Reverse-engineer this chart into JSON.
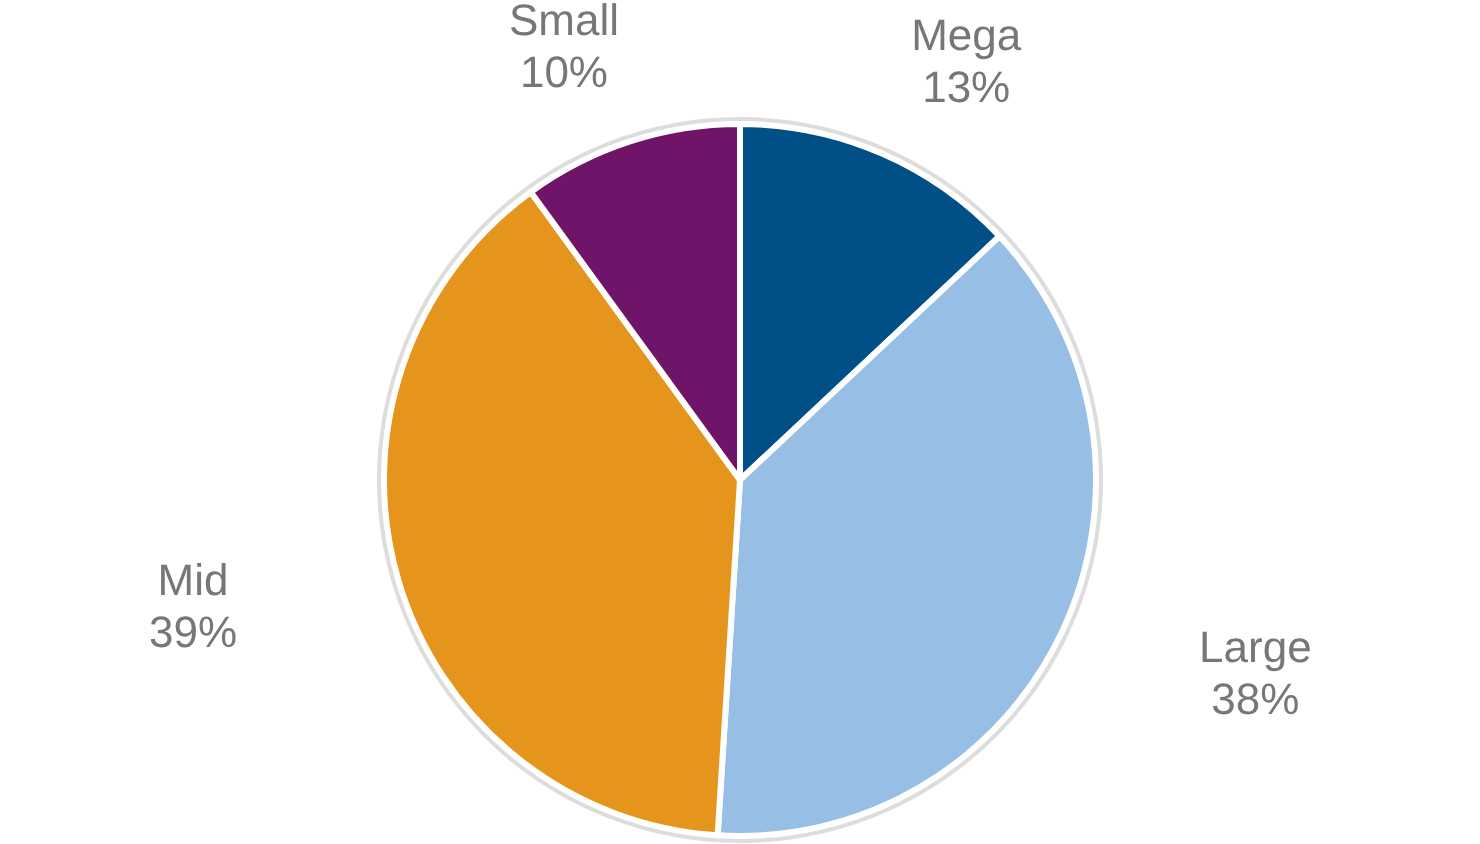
{
  "chart_data": {
    "type": "pie",
    "categories": [
      "Mega",
      "Large",
      "Mid",
      "Small"
    ],
    "values": [
      13,
      38,
      39,
      10
    ],
    "colors": [
      "#004f87",
      "#97bfe6",
      "#e6951c",
      "#6f1469"
    ],
    "value_labels": [
      "13%",
      "38%",
      "39%",
      "10%"
    ]
  }
}
